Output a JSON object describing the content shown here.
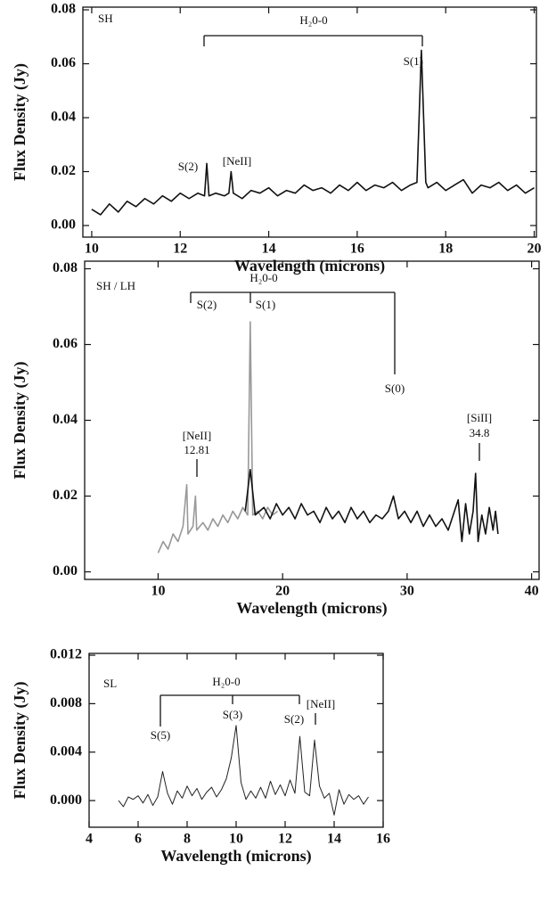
{
  "chart_data": [
    {
      "type": "line",
      "xlabel": "Wavelength (microns)",
      "ylabel": "Flux Density (Jy)",
      "annotations": [
        "SH",
        "H₂0-0",
        "S(1)",
        "S(2)",
        "[NeII]"
      ],
      "xlim": [
        9.8,
        20.05
      ],
      "ylim": [
        -0.0043,
        0.081
      ],
      "xticks": [
        10,
        12,
        14,
        16,
        18,
        20
      ],
      "yticks": [
        {
          "value": 0,
          "label": "0.00"
        },
        0.02,
        0.04,
        0.06,
        0.08
      ],
      "series": [
        {
          "color": "#111111",
          "x": [
            10.0,
            10.2,
            10.4,
            10.6,
            10.8,
            11.0,
            11.2,
            11.4,
            11.6,
            11.8,
            12.0,
            12.2,
            12.4,
            12.55,
            12.6,
            12.65,
            12.8,
            13.0,
            13.1,
            13.15,
            13.2,
            13.4,
            13.6,
            13.8,
            14.0,
            14.2,
            14.4,
            14.6,
            14.8,
            15.0,
            15.2,
            15.4,
            15.6,
            15.8,
            16.0,
            16.2,
            16.4,
            16.6,
            16.8,
            17.0,
            17.2,
            17.35,
            17.45,
            17.55,
            17.6,
            17.8,
            18.0,
            18.2,
            18.4,
            18.6,
            18.8,
            19.0,
            19.2,
            19.4,
            19.6,
            19.8,
            20.0
          ],
          "values": [
            0.006,
            0.004,
            0.008,
            0.005,
            0.009,
            0.007,
            0.01,
            0.008,
            0.011,
            0.009,
            0.012,
            0.01,
            0.012,
            0.011,
            0.023,
            0.011,
            0.012,
            0.011,
            0.012,
            0.02,
            0.012,
            0.01,
            0.013,
            0.012,
            0.014,
            0.011,
            0.013,
            0.012,
            0.015,
            0.013,
            0.014,
            0.012,
            0.015,
            0.013,
            0.016,
            0.013,
            0.015,
            0.014,
            0.016,
            0.013,
            0.015,
            0.016,
            0.065,
            0.016,
            0.014,
            0.016,
            0.013,
            0.015,
            0.017,
            0.012,
            0.015,
            0.014,
            0.016,
            0.013,
            0.015,
            0.012,
            0.014
          ]
        }
      ]
    },
    {
      "type": "line",
      "xlabel": "Wavelength (microns)",
      "ylabel": "Flux Density (Jy)",
      "annotations": [
        "SH / LH",
        "H₂0-0",
        "S(2)",
        "S(1)",
        "S(0)",
        "[NeII]",
        "12.81",
        "[SiII]",
        "34.8"
      ],
      "xlim": [
        4.1,
        40.6
      ],
      "ylim": [
        -0.002,
        0.082
      ],
      "xticks": [
        10,
        20,
        30,
        40
      ],
      "yticks": [
        {
          "value": 0,
          "label": "0.00"
        },
        0.02,
        0.04,
        0.06,
        0.08
      ],
      "series": [
        {
          "color": "#999999",
          "x": [
            10.0,
            10.4,
            10.8,
            11.2,
            11.6,
            12.0,
            12.3,
            12.4,
            12.8,
            13.0,
            13.1,
            13.6,
            14.0,
            14.4,
            14.8,
            15.2,
            15.6,
            16.0,
            16.4,
            16.8,
            17.2,
            17.4,
            17.6,
            18.0,
            18.4,
            18.8,
            19.2,
            19.6
          ],
          "values": [
            0.005,
            0.008,
            0.006,
            0.01,
            0.008,
            0.012,
            0.023,
            0.01,
            0.012,
            0.02,
            0.011,
            0.013,
            0.011,
            0.014,
            0.012,
            0.015,
            0.013,
            0.016,
            0.014,
            0.017,
            0.015,
            0.066,
            0.015,
            0.016,
            0.014,
            0.017,
            0.015,
            0.016
          ]
        },
        {
          "color": "#111111",
          "x": [
            17.0,
            17.4,
            17.8,
            18.5,
            19.0,
            19.5,
            20.0,
            20.5,
            21.0,
            21.5,
            22.0,
            22.5,
            23.0,
            23.5,
            24.0,
            24.5,
            25.0,
            25.5,
            26.0,
            26.5,
            27.0,
            27.5,
            28.0,
            28.5,
            28.9,
            29.3,
            29.8,
            30.3,
            30.8,
            31.3,
            31.8,
            32.3,
            32.8,
            33.3,
            33.8,
            34.1,
            34.4,
            34.7,
            35.0,
            35.3,
            35.5,
            35.7,
            36.0,
            36.3,
            36.6,
            36.9,
            37.1,
            37.3
          ],
          "values": [
            0.016,
            0.027,
            0.015,
            0.017,
            0.014,
            0.018,
            0.015,
            0.017,
            0.014,
            0.018,
            0.015,
            0.016,
            0.013,
            0.017,
            0.014,
            0.016,
            0.013,
            0.017,
            0.014,
            0.016,
            0.013,
            0.015,
            0.014,
            0.016,
            0.02,
            0.014,
            0.016,
            0.013,
            0.016,
            0.012,
            0.015,
            0.012,
            0.014,
            0.011,
            0.016,
            0.019,
            0.008,
            0.018,
            0.01,
            0.016,
            0.026,
            0.008,
            0.015,
            0.01,
            0.017,
            0.011,
            0.016,
            0.01
          ]
        }
      ]
    },
    {
      "type": "line",
      "xlabel": "Wavelength (microns)",
      "ylabel": "Flux Density (Jy)",
      "annotations": [
        "SL",
        "H₂0-0",
        "S(5)",
        "S(3)",
        "S(2)",
        "[NeII]"
      ],
      "xlim": [
        4,
        16
      ],
      "ylim": [
        -0.0022,
        0.01215
      ],
      "xticks": [
        4,
        6,
        8,
        10,
        12,
        14,
        16
      ],
      "yticks": [
        {
          "value": 0,
          "label": "0.000"
        },
        0.004,
        0.008,
        0.012
      ],
      "series": [
        {
          "color": "#222222",
          "x": [
            5.2,
            5.4,
            5.6,
            5.8,
            6.0,
            6.2,
            6.4,
            6.6,
            6.8,
            7.0,
            7.2,
            7.4,
            7.6,
            7.8,
            8.0,
            8.2,
            8.4,
            8.6,
            8.8,
            9.0,
            9.2,
            9.4,
            9.6,
            9.8,
            10.0,
            10.2,
            10.4,
            10.6,
            10.8,
            11.0,
            11.2,
            11.4,
            11.6,
            11.8,
            12.0,
            12.2,
            12.4,
            12.6,
            12.8,
            13.0,
            13.2,
            13.4,
            13.6,
            13.8,
            14.0,
            14.2,
            14.4,
            14.6,
            14.8,
            15.0,
            15.2,
            15.4
          ],
          "values": [
            0,
            -0.0005,
            0.0003,
            0.0001,
            0.0004,
            -0.0002,
            0.0005,
            -0.0004,
            0.0003,
            0.0024,
            0.0006,
            -0.0003,
            0.0008,
            0.0002,
            0.0012,
            0.0004,
            0.001,
            0.0001,
            0.0007,
            0.0011,
            0.0003,
            0.0009,
            0.0018,
            0.0035,
            0.0062,
            0.0015,
            0.0001,
            0.0008,
            0.0002,
            0.0011,
            0.0002,
            0.0016,
            0.0005,
            0.0013,
            0.0004,
            0.0017,
            0.0006,
            0.0053,
            0.0007,
            0.0004,
            0.005,
            0.0012,
            0.0002,
            0.0006,
            -0.0012,
            0.0009,
            -0.0003,
            0.0005,
            0.0001,
            0.0004,
            -0.0003,
            0.0003
          ]
        }
      ]
    }
  ]
}
